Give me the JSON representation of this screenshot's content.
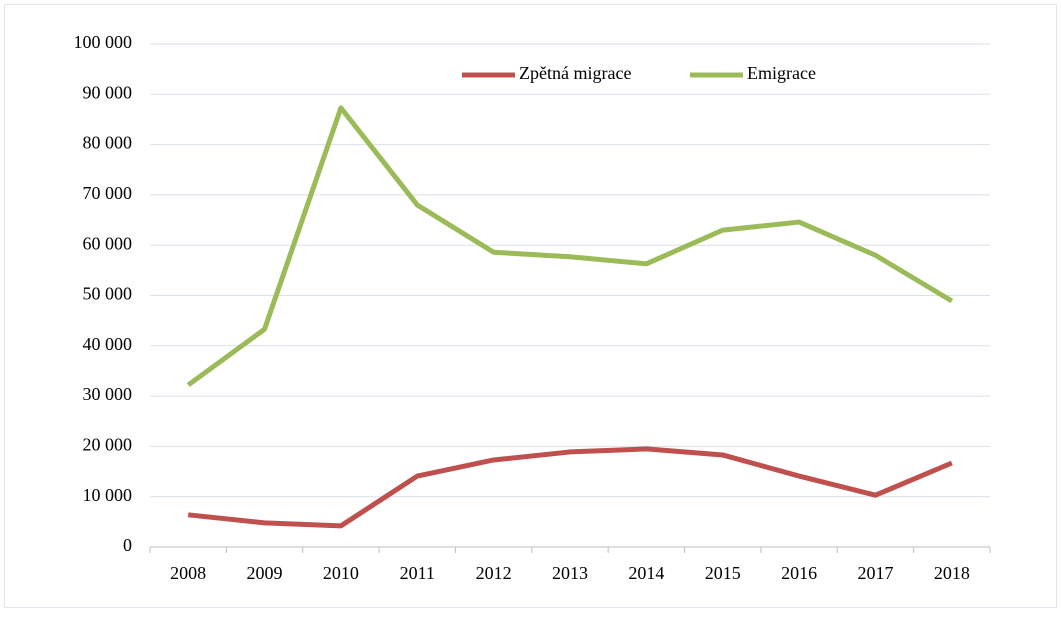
{
  "chart_data": {
    "type": "line",
    "categories": [
      "2008",
      "2009",
      "2010",
      "2011",
      "2012",
      "2013",
      "2014",
      "2015",
      "2016",
      "2017",
      "2018"
    ],
    "series": [
      {
        "name": "Zpětná migrace",
        "color": "#c0504d",
        "values": [
          6400,
          4800,
          4200,
          14100,
          17300,
          18900,
          19500,
          18300,
          14100,
          10300,
          16700
        ]
      },
      {
        "name": "Emigrace",
        "color": "#9bbb59",
        "values": [
          32200,
          43300,
          87300,
          68000,
          58600,
          57700,
          56300,
          63000,
          64600,
          58000,
          48900
        ]
      }
    ],
    "ylim": [
      0,
      100000
    ],
    "yticks": [
      0,
      {
        "value": 10000,
        "label": "10 000"
      },
      {
        "value": 20000,
        "label": "20 000"
      },
      {
        "value": 30000,
        "label": "30 000"
      },
      {
        "value": 40000,
        "label": "40 000"
      },
      {
        "value": 50000,
        "label": "50 000"
      },
      {
        "value": 60000,
        "label": "60 000"
      },
      {
        "value": 70000,
        "label": "70 000"
      },
      {
        "value": 80000,
        "label": "80 000"
      },
      {
        "value": 90000,
        "label": "90 000"
      },
      {
        "value": 100000,
        "label": "100 000"
      }
    ],
    "grid": true,
    "legend": "top"
  }
}
